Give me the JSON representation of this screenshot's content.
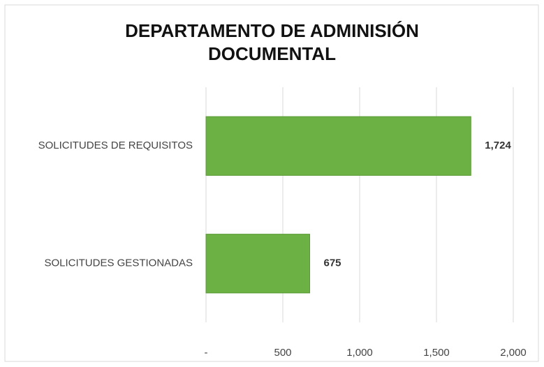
{
  "chart_data": {
    "type": "bar",
    "orientation": "horizontal",
    "title": "DEPARTAMENTO DE ADMINISIÓN DOCUMENTAL",
    "categories": [
      "SOLICITUDES DE REQUISITOS",
      "SOLICITUDES GESTIONADAS"
    ],
    "values": [
      1724,
      675
    ],
    "value_labels": [
      "1,724",
      "675"
    ],
    "color": "#6cb143",
    "xlim": [
      0,
      2000
    ],
    "xticks": [
      {
        "value": 0,
        "label": "-"
      },
      500,
      {
        "value": 1000,
        "label": "1,000"
      },
      {
        "value": 1500,
        "label": "1,500"
      },
      {
        "value": 2000,
        "label": "2,000"
      }
    ],
    "grid": true
  }
}
